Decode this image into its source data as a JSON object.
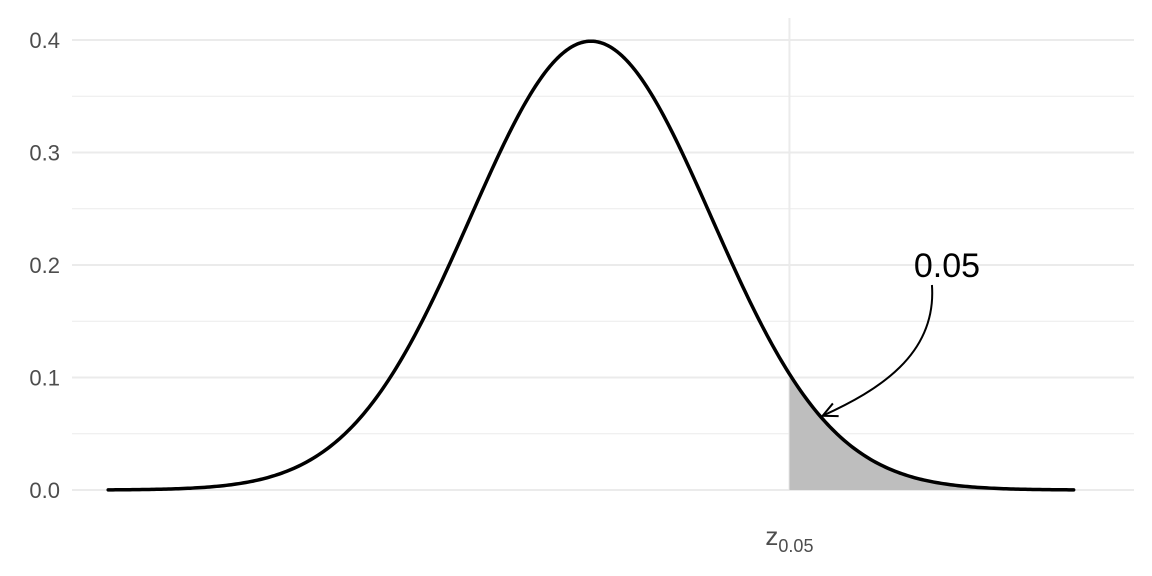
{
  "chart_data": {
    "type": "area",
    "title": "",
    "xlabel": "",
    "ylabel": "",
    "distribution": "standard normal density",
    "xlim": [
      -4.3,
      4.5
    ],
    "ylim": [
      0,
      0.4
    ],
    "y_ticks": [
      "0.0",
      "0.1",
      "0.2",
      "0.3",
      "0.4"
    ],
    "y_tick_values": [
      0.0,
      0.1,
      0.2,
      0.3,
      0.4
    ],
    "y_minor_ticks": [
      0.05,
      0.15,
      0.25,
      0.35
    ],
    "x_ticks": [
      {
        "value": 1.645,
        "label_main": "z",
        "label_sub": "0.05"
      }
    ],
    "curve": {
      "x": [
        -4.0,
        -3.75,
        -3.5,
        -3.25,
        -3.0,
        -2.75,
        -2.5,
        -2.25,
        -2.0,
        -1.75,
        -1.5,
        -1.25,
        -1.0,
        -0.75,
        -0.5,
        -0.25,
        0.0,
        0.25,
        0.5,
        0.75,
        1.0,
        1.25,
        1.5,
        1.75,
        2.0,
        2.25,
        2.5,
        2.75,
        3.0,
        3.25,
        3.5,
        3.75,
        4.0
      ],
      "y": [
        0.0001,
        0.0004,
        0.0009,
        0.002,
        0.0044,
        0.0091,
        0.0175,
        0.0317,
        0.054,
        0.0863,
        0.1295,
        0.1826,
        0.242,
        0.3011,
        0.3521,
        0.3867,
        0.3989,
        0.3867,
        0.3521,
        0.3011,
        0.242,
        0.1826,
        0.1295,
        0.0863,
        0.054,
        0.0317,
        0.0175,
        0.0091,
        0.0044,
        0.002,
        0.0009,
        0.0004,
        0.0001
      ]
    },
    "shaded_region": {
      "from": 1.645,
      "to": 4.0,
      "color": "#bebebe"
    },
    "annotation": {
      "text": "0.05",
      "text_x": 2.95,
      "text_y": 0.2,
      "arrow_to_x": 1.92,
      "arrow_to_y": 0.066
    },
    "grid": true,
    "colors": {
      "curve": "#000000",
      "grid": "#ebebeb",
      "shade": "#bebebe",
      "tick_text": "#4d4d4d"
    }
  }
}
